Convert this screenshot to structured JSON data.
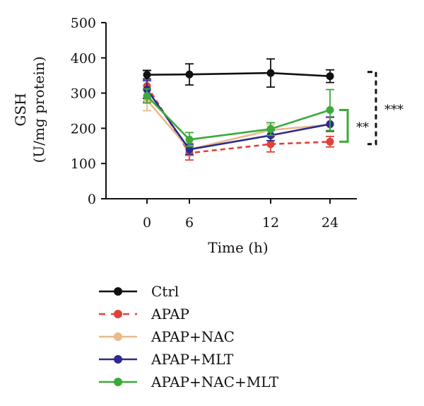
{
  "chart_data": {
    "type": "line",
    "x": [
      0,
      6,
      12,
      24
    ],
    "xticks": [
      "0",
      "6",
      "12",
      "24"
    ],
    "yticks": [
      0,
      100,
      200,
      300,
      400,
      500
    ],
    "ylim": [
      0,
      500
    ],
    "xlabel": "Time (h)",
    "ylabel_line1": "GSH",
    "ylabel_line2": "(U/mg protein)",
    "legend_position": "bottom",
    "series": [
      {
        "name": "Ctrl",
        "color": "#111111",
        "dashed": false,
        "values": [
          352,
          353,
          357,
          348
        ],
        "errors": [
          12,
          30,
          40,
          18
        ]
      },
      {
        "name": "APAP",
        "color": "#e0413a",
        "dashed": true,
        "values": [
          320,
          130,
          155,
          162
        ],
        "errors": [
          45,
          20,
          22,
          15
        ]
      },
      {
        "name": "APAP+NAC",
        "color": "#e9b98a",
        "dashed": false,
        "values": [
          280,
          140,
          195,
          210
        ],
        "errors": [
          30,
          18,
          15,
          20
        ]
      },
      {
        "name": "APAP+MLT",
        "color": "#2e2a8e",
        "dashed": false,
        "values": [
          310,
          140,
          180,
          212
        ],
        "errors": [
          25,
          15,
          15,
          20
        ]
      },
      {
        "name": "APAP+NAC+MLT",
        "color": "#3aaa3a",
        "dashed": false,
        "values": [
          292,
          168,
          198,
          252
        ],
        "errors": [
          20,
          20,
          18,
          58
        ]
      }
    ],
    "significance": [
      {
        "label": "**",
        "color": "#3aaa3a",
        "style": "solid",
        "from": 162,
        "to": 252
      },
      {
        "label": "***",
        "color": "#111111",
        "style": "dashed",
        "from": 155,
        "to": 360
      }
    ],
    "series_order": [
      1,
      2,
      3,
      4,
      0
    ]
  }
}
